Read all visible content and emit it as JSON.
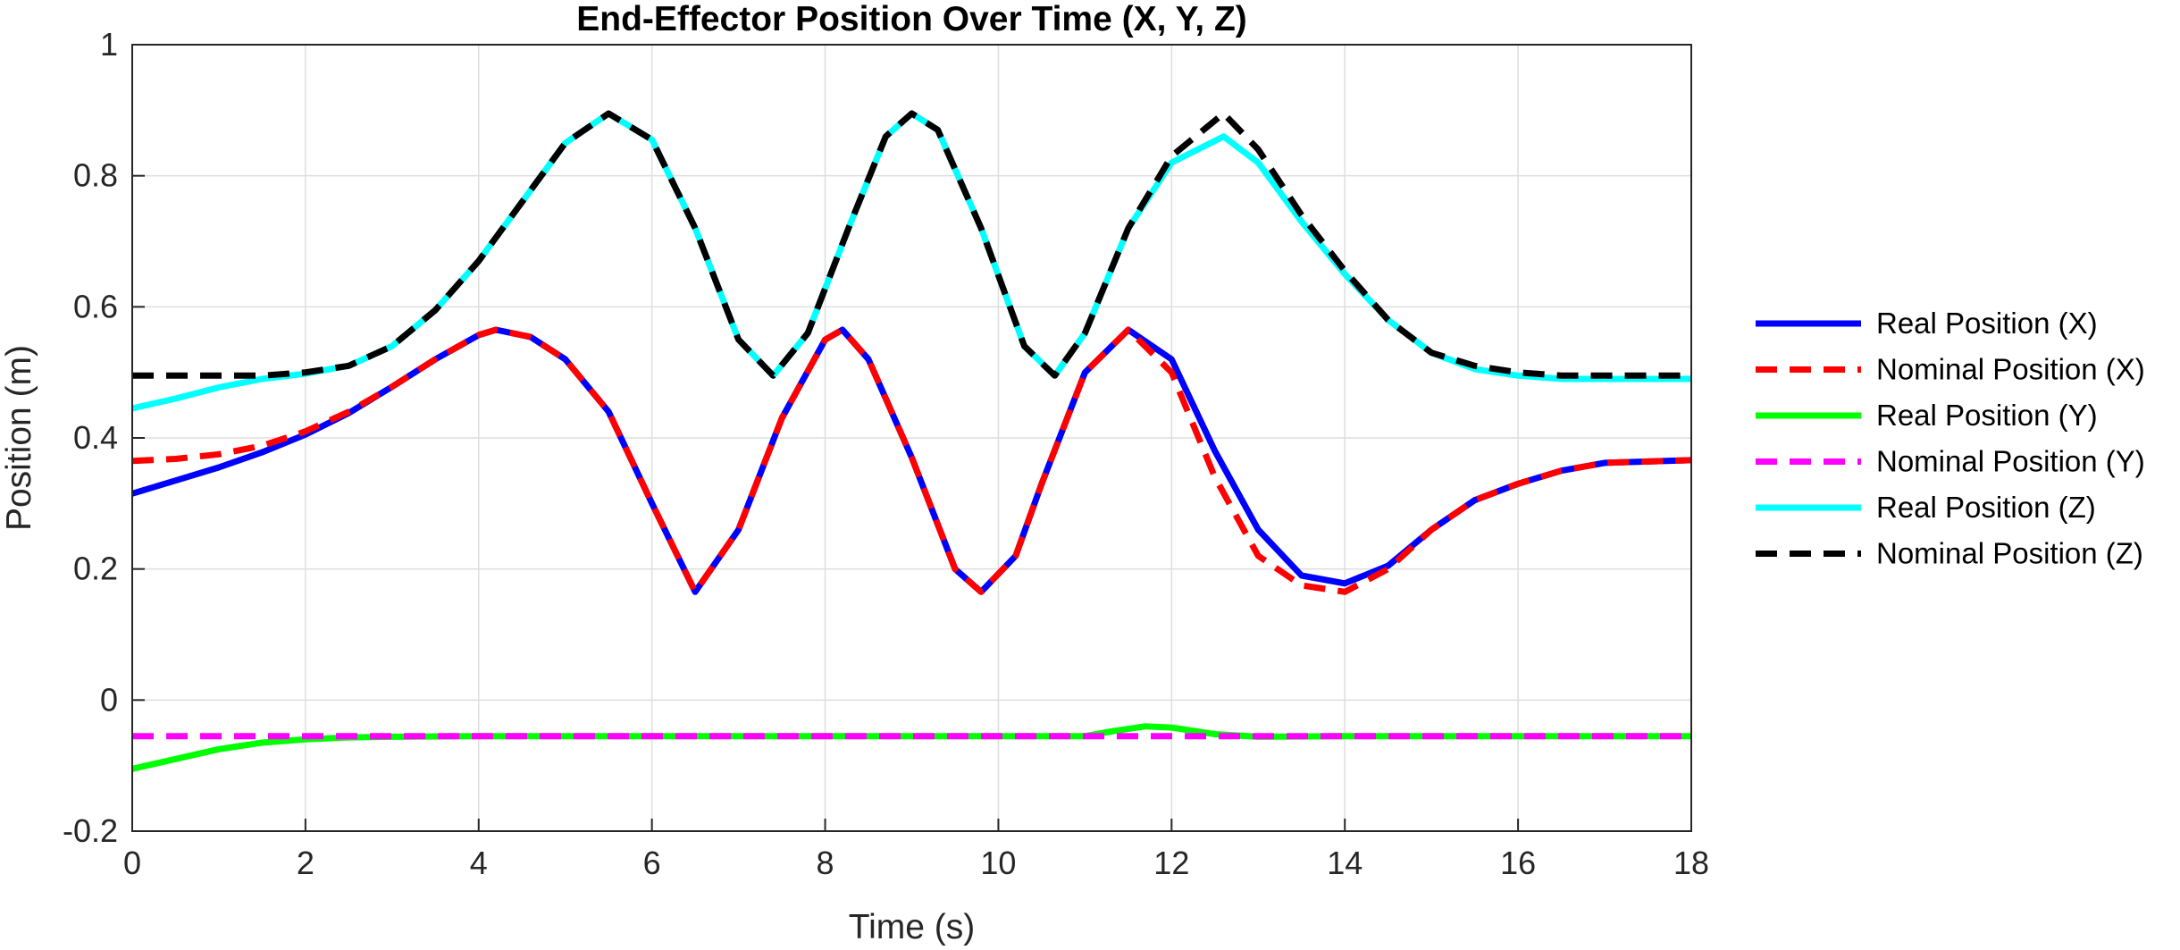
{
  "chart_data": {
    "type": "line",
    "title": "End-Effector Position Over Time (X, Y, Z)",
    "xlabel": "Time (s)",
    "ylabel": "Position (m)",
    "xlim": [
      0,
      18
    ],
    "ylim": [
      -0.2,
      1
    ],
    "xticks": [
      "0",
      "2",
      "4",
      "6",
      "8",
      "10",
      "12",
      "14",
      "16",
      "18"
    ],
    "yticks": [
      "-0.2",
      "0",
      "0.2",
      "0.4",
      "0.6",
      "0.8",
      "1"
    ],
    "grid": true,
    "legend_position": "right",
    "series": [
      {
        "name": "Real Position (X)",
        "color": "#0000ff",
        "dash": "solid",
        "points": [
          [
            0,
            0.315
          ],
          [
            0.5,
            0.335
          ],
          [
            1,
            0.355
          ],
          [
            1.5,
            0.378
          ],
          [
            2,
            0.405
          ],
          [
            2.5,
            0.438
          ],
          [
            3,
            0.478
          ],
          [
            3.5,
            0.52
          ],
          [
            4,
            0.557
          ],
          [
            4.2,
            0.565
          ],
          [
            4.6,
            0.554
          ],
          [
            5,
            0.52
          ],
          [
            5.5,
            0.44
          ],
          [
            6,
            0.3
          ],
          [
            6.5,
            0.165
          ],
          [
            7,
            0.26
          ],
          [
            7.5,
            0.43
          ],
          [
            8,
            0.55
          ],
          [
            8.2,
            0.565
          ],
          [
            8.5,
            0.52
          ],
          [
            9,
            0.37
          ],
          [
            9.5,
            0.2
          ],
          [
            9.8,
            0.165
          ],
          [
            10.2,
            0.22
          ],
          [
            10.5,
            0.33
          ],
          [
            11,
            0.5
          ],
          [
            11.5,
            0.565
          ],
          [
            12,
            0.52
          ],
          [
            12.5,
            0.38
          ],
          [
            13,
            0.26
          ],
          [
            13.5,
            0.19
          ],
          [
            14,
            0.178
          ],
          [
            14.5,
            0.205
          ],
          [
            15,
            0.26
          ],
          [
            15.5,
            0.305
          ],
          [
            16,
            0.33
          ],
          [
            16.5,
            0.35
          ],
          [
            17,
            0.362
          ],
          [
            18,
            0.366
          ]
        ]
      },
      {
        "name": "Nominal Position (X)",
        "color": "#ff0000",
        "dash": "dashed",
        "points": [
          [
            0,
            0.365
          ],
          [
            0.5,
            0.368
          ],
          [
            1,
            0.375
          ],
          [
            1.5,
            0.388
          ],
          [
            2,
            0.41
          ],
          [
            2.5,
            0.44
          ],
          [
            3,
            0.478
          ],
          [
            3.5,
            0.52
          ],
          [
            4,
            0.557
          ],
          [
            4.2,
            0.565
          ],
          [
            4.6,
            0.554
          ],
          [
            5,
            0.52
          ],
          [
            5.5,
            0.44
          ],
          [
            6,
            0.3
          ],
          [
            6.5,
            0.165
          ],
          [
            7,
            0.26
          ],
          [
            7.5,
            0.43
          ],
          [
            8,
            0.55
          ],
          [
            8.2,
            0.565
          ],
          [
            8.5,
            0.52
          ],
          [
            9,
            0.37
          ],
          [
            9.5,
            0.2
          ],
          [
            9.8,
            0.165
          ],
          [
            10.2,
            0.22
          ],
          [
            10.5,
            0.33
          ],
          [
            11,
            0.5
          ],
          [
            11.5,
            0.565
          ],
          [
            12,
            0.5
          ],
          [
            12.5,
            0.34
          ],
          [
            13,
            0.22
          ],
          [
            13.5,
            0.175
          ],
          [
            14,
            0.165
          ],
          [
            14.5,
            0.2
          ],
          [
            15,
            0.26
          ],
          [
            15.5,
            0.305
          ],
          [
            16,
            0.33
          ],
          [
            16.5,
            0.35
          ],
          [
            17,
            0.362
          ],
          [
            18,
            0.366
          ]
        ]
      },
      {
        "name": "Real Position (Y)",
        "color": "#00ff00",
        "dash": "solid",
        "points": [
          [
            0,
            -0.105
          ],
          [
            0.5,
            -0.09
          ],
          [
            1,
            -0.075
          ],
          [
            1.5,
            -0.065
          ],
          [
            2,
            -0.06
          ],
          [
            2.5,
            -0.057
          ],
          [
            3,
            -0.056
          ],
          [
            4,
            -0.055
          ],
          [
            6,
            -0.055
          ],
          [
            8,
            -0.055
          ],
          [
            10,
            -0.055
          ],
          [
            11,
            -0.055
          ],
          [
            11.3,
            -0.048
          ],
          [
            11.7,
            -0.04
          ],
          [
            12,
            -0.042
          ],
          [
            12.5,
            -0.052
          ],
          [
            13,
            -0.056
          ],
          [
            14,
            -0.055
          ],
          [
            16,
            -0.055
          ],
          [
            18,
            -0.055
          ]
        ]
      },
      {
        "name": "Nominal Position (Y)",
        "color": "#ff00ff",
        "dash": "dashed",
        "points": [
          [
            0,
            -0.055
          ],
          [
            18,
            -0.055
          ]
        ]
      },
      {
        "name": "Real Position (Z)",
        "color": "#00ffff",
        "dash": "solid",
        "points": [
          [
            0,
            0.445
          ],
          [
            0.5,
            0.46
          ],
          [
            1,
            0.477
          ],
          [
            1.5,
            0.49
          ],
          [
            2,
            0.498
          ],
          [
            2.5,
            0.51
          ],
          [
            3,
            0.54
          ],
          [
            3.5,
            0.595
          ],
          [
            4,
            0.67
          ],
          [
            4.5,
            0.76
          ],
          [
            5,
            0.85
          ],
          [
            5.5,
            0.895
          ],
          [
            6,
            0.855
          ],
          [
            6.5,
            0.72
          ],
          [
            7,
            0.55
          ],
          [
            7.4,
            0.495
          ],
          [
            7.8,
            0.56
          ],
          [
            8.3,
            0.73
          ],
          [
            8.7,
            0.86
          ],
          [
            9,
            0.895
          ],
          [
            9.3,
            0.87
          ],
          [
            9.8,
            0.72
          ],
          [
            10.3,
            0.54
          ],
          [
            10.65,
            0.495
          ],
          [
            11,
            0.56
          ],
          [
            11.5,
            0.72
          ],
          [
            12,
            0.82
          ],
          [
            12.6,
            0.86
          ],
          [
            13,
            0.82
          ],
          [
            13.5,
            0.73
          ],
          [
            14,
            0.65
          ],
          [
            14.5,
            0.58
          ],
          [
            15,
            0.53
          ],
          [
            15.5,
            0.505
          ],
          [
            16,
            0.495
          ],
          [
            16.5,
            0.49
          ],
          [
            17,
            0.49
          ],
          [
            18,
            0.49
          ]
        ]
      },
      {
        "name": "Nominal Position (Z)",
        "color": "#000000",
        "dash": "dashed",
        "points": [
          [
            0,
            0.495
          ],
          [
            1,
            0.495
          ],
          [
            1.5,
            0.495
          ],
          [
            2,
            0.5
          ],
          [
            2.5,
            0.51
          ],
          [
            3,
            0.54
          ],
          [
            3.5,
            0.595
          ],
          [
            4,
            0.67
          ],
          [
            4.5,
            0.76
          ],
          [
            5,
            0.85
          ],
          [
            5.5,
            0.895
          ],
          [
            6,
            0.855
          ],
          [
            6.5,
            0.72
          ],
          [
            7,
            0.55
          ],
          [
            7.4,
            0.495
          ],
          [
            7.8,
            0.56
          ],
          [
            8.3,
            0.73
          ],
          [
            8.7,
            0.86
          ],
          [
            9,
            0.895
          ],
          [
            9.3,
            0.87
          ],
          [
            9.8,
            0.72
          ],
          [
            10.3,
            0.54
          ],
          [
            10.65,
            0.495
          ],
          [
            11,
            0.56
          ],
          [
            11.5,
            0.72
          ],
          [
            12,
            0.83
          ],
          [
            12.6,
            0.895
          ],
          [
            13,
            0.84
          ],
          [
            13.5,
            0.74
          ],
          [
            14,
            0.655
          ],
          [
            14.5,
            0.58
          ],
          [
            15,
            0.53
          ],
          [
            15.5,
            0.51
          ],
          [
            16,
            0.5
          ],
          [
            16.5,
            0.495
          ],
          [
            17,
            0.495
          ],
          [
            18,
            0.495
          ]
        ]
      }
    ]
  }
}
